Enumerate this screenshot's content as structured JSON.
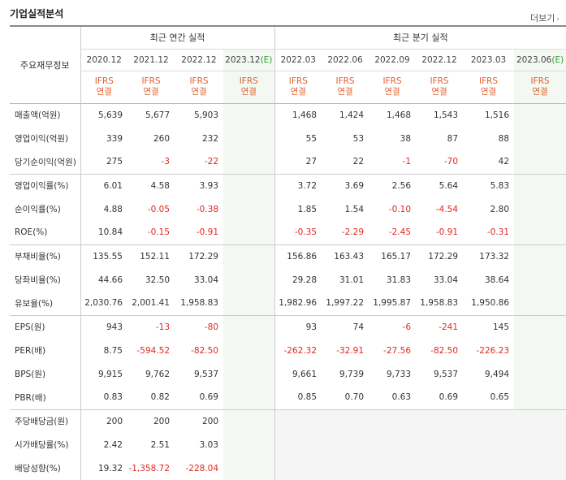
{
  "header": {
    "title": "기업실적분석",
    "more_label": "더보기"
  },
  "table": {
    "rowhead_label": "주요재무정보",
    "group_annual": "최근 연간 실적",
    "group_quarter": "최근 분기 실적",
    "annual_periods": [
      "2020.12",
      "2021.12",
      "2022.12",
      "2023.12"
    ],
    "quarter_periods": [
      "2022.03",
      "2022.06",
      "2022.09",
      "2022.12",
      "2023.03",
      "2023.06"
    ],
    "estimate_mark": "(E)",
    "ifrs": "IFRS",
    "consolidated": "연결",
    "rows": [
      {
        "label": "매출액(억원)",
        "values": [
          "5,639",
          "5,677",
          "5,903",
          "",
          "1,468",
          "1,424",
          "1,468",
          "1,543",
          "1,516",
          ""
        ]
      },
      {
        "label": "영업이익(억원)",
        "values": [
          "339",
          "260",
          "232",
          "",
          "55",
          "53",
          "38",
          "87",
          "88",
          ""
        ]
      },
      {
        "label": "당기순이익(억원)",
        "values": [
          "275",
          "-3",
          "-22",
          "",
          "27",
          "22",
          "-1",
          "-70",
          "42",
          ""
        ]
      },
      {
        "label": "영업이익률(%)",
        "values": [
          "6.01",
          "4.58",
          "3.93",
          "",
          "3.72",
          "3.69",
          "2.56",
          "5.64",
          "5.83",
          ""
        ]
      },
      {
        "label": "순이익률(%)",
        "values": [
          "4.88",
          "-0.05",
          "-0.38",
          "",
          "1.85",
          "1.54",
          "-0.10",
          "-4.54",
          "2.80",
          ""
        ]
      },
      {
        "label": "ROE(%)",
        "values": [
          "10.84",
          "-0.15",
          "-0.91",
          "",
          "-0.35",
          "-2.29",
          "-2.45",
          "-0.91",
          "-0.31",
          ""
        ]
      },
      {
        "label": "부채비율(%)",
        "values": [
          "135.55",
          "152.11",
          "172.29",
          "",
          "156.86",
          "163.43",
          "165.17",
          "172.29",
          "173.32",
          ""
        ]
      },
      {
        "label": "당좌비율(%)",
        "values": [
          "44.66",
          "32.50",
          "33.04",
          "",
          "29.28",
          "31.01",
          "31.83",
          "33.04",
          "38.64",
          ""
        ]
      },
      {
        "label": "유보율(%)",
        "values": [
          "2,030.76",
          "2,001.41",
          "1,958.83",
          "",
          "1,982.96",
          "1,997.22",
          "1,995.87",
          "1,958.83",
          "1,950.86",
          ""
        ]
      },
      {
        "label": "EPS(원)",
        "values": [
          "943",
          "-13",
          "-80",
          "",
          "93",
          "74",
          "-6",
          "-241",
          "145",
          ""
        ]
      },
      {
        "label": "PER(배)",
        "values": [
          "8.75",
          "-594.52",
          "-82.50",
          "",
          "-262.32",
          "-32.91",
          "-27.56",
          "-82.50",
          "-226.23",
          ""
        ]
      },
      {
        "label": "BPS(원)",
        "values": [
          "9,915",
          "9,762",
          "9,537",
          "",
          "9,661",
          "9,739",
          "9,733",
          "9,537",
          "9,494",
          ""
        ]
      },
      {
        "label": "PBR(배)",
        "values": [
          "0.83",
          "0.82",
          "0.69",
          "",
          "0.85",
          "0.70",
          "0.63",
          "0.69",
          "0.65",
          ""
        ]
      },
      {
        "label": "주당배당금(원)",
        "values": [
          "200",
          "200",
          "200",
          "",
          "",
          "",
          "",
          "",
          "",
          ""
        ]
      },
      {
        "label": "시가배당률(%)",
        "values": [
          "2.42",
          "2.51",
          "3.03",
          "",
          "",
          "",
          "",
          "",
          "",
          ""
        ]
      },
      {
        "label": "배당성향(%)",
        "values": [
          "19.32",
          "-1,358.72",
          "-228.04",
          "",
          "",
          "",
          "",
          "",
          "",
          ""
        ]
      }
    ]
  }
}
